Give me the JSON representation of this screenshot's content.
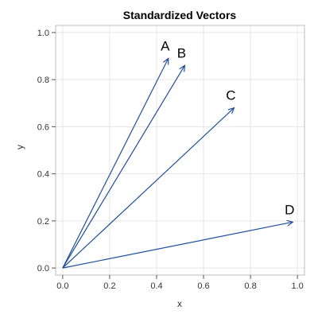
{
  "chart_data": {
    "type": "line",
    "title": "Standardized Vectors",
    "xlabel": "x",
    "ylabel": "y",
    "xlim": [
      -0.03,
      1.03
    ],
    "ylim": [
      -0.03,
      1.03
    ],
    "x_ticks": [
      0.0,
      0.2,
      0.4,
      0.6,
      0.8,
      1.0
    ],
    "x_tick_labels": [
      "0.0",
      "0.2",
      "0.4",
      "0.6",
      "0.8",
      "1.0"
    ],
    "y_ticks": [
      0.0,
      0.2,
      0.4,
      0.6,
      0.8,
      1.0
    ],
    "y_tick_labels": [
      "0.0",
      "0.2",
      "0.4",
      "0.6",
      "0.8",
      "1.0"
    ],
    "grid": true,
    "vectors": [
      {
        "label": "A",
        "x": 0.45,
        "y": 0.89
      },
      {
        "label": "B",
        "x": 0.52,
        "y": 0.86
      },
      {
        "label": "C",
        "x": 0.73,
        "y": 0.68
      },
      {
        "label": "D",
        "x": 0.98,
        "y": 0.195
      }
    ],
    "vector_color": "#1f4e9a"
  }
}
